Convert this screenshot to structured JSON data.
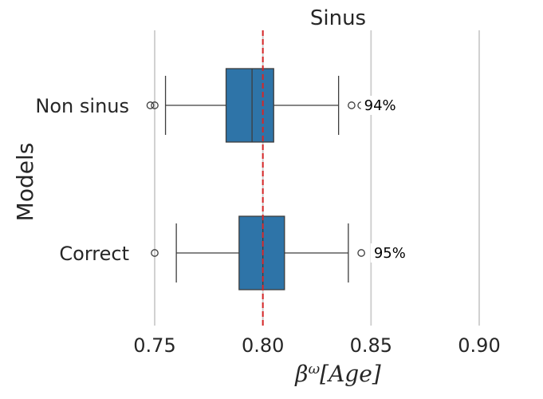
{
  "chart_data": {
    "type": "boxplot",
    "orientation": "horizontal",
    "title": "Sinus",
    "xlabel": {
      "base": "β",
      "sup": "ω",
      "rest": "[Age]"
    },
    "ylabel": "Models",
    "xlim": [
      0.7,
      0.93
    ],
    "xticks": [
      0.75,
      0.8,
      0.85,
      0.9
    ],
    "xtick_labels": [
      "0.75",
      "0.80",
      "0.85",
      "0.90"
    ],
    "grid": "vertical",
    "reference_line": {
      "x": 0.8,
      "color": "#d62728",
      "style": "dashed"
    },
    "box_color": "#2e74a8",
    "categories": [
      "Non sinus",
      "Correct"
    ],
    "boxes": [
      {
        "category": "Non sinus",
        "whisker_low": 0.755,
        "q1": 0.783,
        "median": 0.795,
        "q3": 0.805,
        "whisker_high": 0.835,
        "outliers": [
          0.748,
          0.75,
          0.841,
          0.8455
        ],
        "annotation": "94%"
      },
      {
        "category": "Correct",
        "whisker_low": 0.76,
        "q1": 0.789,
        "median": 0.8,
        "q3": 0.81,
        "whisker_high": 0.8395,
        "outliers": [
          0.75,
          0.8455
        ],
        "annotation": "95%"
      }
    ]
  }
}
